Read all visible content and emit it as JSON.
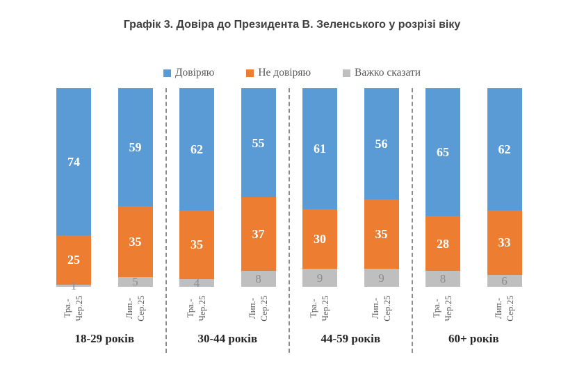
{
  "title": "Графік 3. Довіра до Президента В. Зеленського у розрізі віку",
  "chart_data": {
    "type": "bar",
    "subtype": "100-percent-stacked-column",
    "title": "Графік 3. Довіра до Президента В. Зеленського у розрізі віку",
    "value_unit": "percent",
    "ylim": [
      0,
      100
    ],
    "legend_position": "top",
    "grid": "off",
    "series": [
      {
        "key": "trust",
        "name": "Довіряю",
        "color": "#5B9BD5",
        "label_color": "#FFFFFF"
      },
      {
        "key": "no-trust",
        "name": "Не довіряю",
        "color": "#ED7D31",
        "label_color": "#FFFFFF"
      },
      {
        "key": "hard-to-say",
        "name": "Важко сказати",
        "color": "#BFBFBF",
        "label_color": "#8C8C8C"
      }
    ],
    "groups": [
      {
        "label": "18-29 років",
        "bars": [
          {
            "period": [
              "Тра.-",
              "Чер.25"
            ],
            "values": [
              74,
              25,
              1
            ]
          },
          {
            "period": [
              "Лип.-",
              "Сер.25"
            ],
            "values": [
              59,
              35,
              5
            ]
          }
        ]
      },
      {
        "label": "30-44 років",
        "bars": [
          {
            "period": [
              "Тра.-",
              "Чер.25"
            ],
            "values": [
              62,
              35,
              4
            ]
          },
          {
            "period": [
              "Лип.-",
              "Сер.25"
            ],
            "values": [
              55,
              37,
              8
            ]
          }
        ]
      },
      {
        "label": "44-59 років",
        "bars": [
          {
            "period": [
              "Тра.-",
              "Чер.25"
            ],
            "values": [
              61,
              30,
              9
            ]
          },
          {
            "period": [
              "Лип.-",
              "Сер.25"
            ],
            "values": [
              56,
              35,
              9
            ]
          }
        ]
      },
      {
        "label": "60+ років",
        "bars": [
          {
            "period": [
              "Тра.-",
              "Чер.25"
            ],
            "values": [
              65,
              28,
              8
            ]
          },
          {
            "period": [
              "Лип.-",
              "Сер.25"
            ],
            "values": [
              62,
              33,
              6
            ]
          }
        ]
      }
    ]
  }
}
